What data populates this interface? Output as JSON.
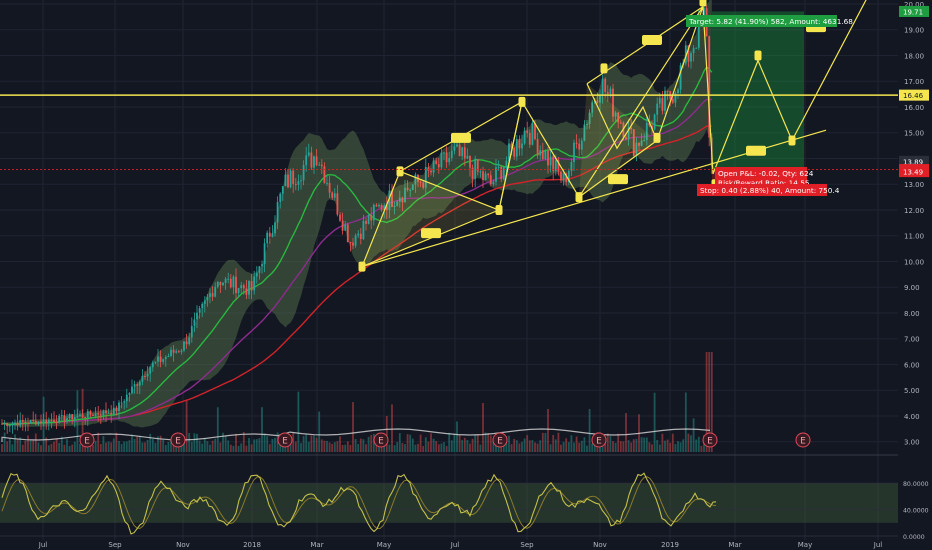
{
  "chart_data": [
    {
      "type": "candlestick",
      "title": "",
      "xlabel": "",
      "ylabel": "",
      "ylim": [
        2.6,
        20.6
      ],
      "y_ticks": [
        "3.00",
        "4.00",
        "5.00",
        "6.00",
        "7.00",
        "8.00",
        "9.00",
        "10.00",
        "11.00",
        "12.00",
        "13.00",
        "14.00",
        "15.00",
        "16.00",
        "17.00",
        "18.00",
        "19.00",
        "20.00"
      ],
      "x_ticks": [
        "Jul",
        "Sep",
        "Nov",
        "2018",
        "Mar",
        "May",
        "Jul",
        "Sep",
        "Nov",
        "2019",
        "Mar",
        "May",
        "Jul"
      ],
      "price_path": [
        [
          "Jul",
          3.8
        ],
        [
          "Sep",
          4.2
        ],
        [
          "Oct",
          5.9
        ],
        [
          "Nov",
          6.7
        ],
        [
          "Dec",
          9.3
        ],
        [
          "2018",
          8.9
        ],
        [
          "Feb",
          13.0
        ],
        [
          "Mar",
          14.2
        ],
        [
          "Apr",
          10.8
        ],
        [
          "May",
          12.3
        ],
        [
          "Jun",
          13.1
        ],
        [
          "Jul",
          14.2
        ],
        [
          "Aug",
          13.0
        ],
        [
          "Sep",
          15.2
        ],
        [
          "Oct",
          13.1
        ],
        [
          "Nov",
          17.0
        ],
        [
          "Dec",
          14.5
        ],
        [
          "2019",
          16.4
        ],
        [
          "Feb",
          19.6
        ],
        [
          "Feb end",
          13.6
        ]
      ],
      "horizontal_levels": [
        {
          "value": 16.46,
          "label": "16.46",
          "color": "#f5e64f"
        },
        {
          "value": 19.71,
          "label": "19.71",
          "color": "#1e9e40"
        },
        {
          "value": 13.89,
          "label": "13.89",
          "color": "#2a2e39"
        },
        {
          "value": 13.57,
          "label": "13.57",
          "color": "#e01f26"
        },
        {
          "value": 13.49,
          "label": "13.49",
          "color": "#e01f26"
        }
      ],
      "position": {
        "target_label": "Target: 5.82 (41.90%) 582, Amount: 4631.68",
        "open_label_1": "Open P&L: -0.02, Qty: 624",
        "open_label_2": "Risk/Reward Ratio: 14.55",
        "stop_label": "Stop: 0.40 (2.88%) 40, Amount: 750.4",
        "colors": {
          "target": "#1e9e40",
          "stop": "#e01f26"
        }
      },
      "earnings_markers": [
        "E",
        "E",
        "E",
        "E",
        "E",
        "E",
        "E",
        "E"
      ],
      "colors": {
        "background": "#131722",
        "up": "#26a69a",
        "down": "#ef5350",
        "pattern": "#f5e64f",
        "ma_green": "#27b83f",
        "ma_red": "#d1232a",
        "ma_purple": "#8d2c8f",
        "band": "#5b7a4d"
      }
    },
    {
      "type": "line",
      "title": "",
      "ylim": [
        0,
        100
      ],
      "y_ticks": [
        "80.0000",
        "40.0000",
        "0.0000"
      ],
      "band": [
        20,
        80
      ],
      "series": [
        {
          "color": "#c4c04a"
        }
      ]
    }
  ]
}
